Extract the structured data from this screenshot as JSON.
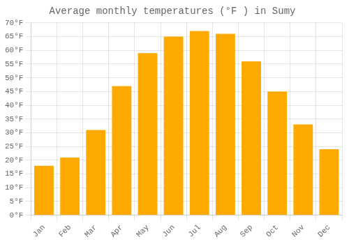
{
  "chart_data": {
    "type": "bar",
    "title": "Average monthly temperatures (°F ) in Sumy",
    "categories": [
      "Jan",
      "Feb",
      "Mar",
      "Apr",
      "May",
      "Jun",
      "Jul",
      "Aug",
      "Sep",
      "Oct",
      "Nov",
      "Dec"
    ],
    "values": [
      18,
      21,
      31,
      47,
      59,
      65,
      67,
      66,
      56,
      45,
      33,
      24
    ],
    "color": "#FFAA00",
    "ylim": [
      0,
      70
    ],
    "yticks": [
      {
        "value": 0,
        "label": "0°F"
      },
      {
        "value": 5,
        "label": "5°F"
      },
      {
        "value": 10,
        "label": "10°F"
      },
      {
        "value": 15,
        "label": "15°F"
      },
      {
        "value": 20,
        "label": "20°F"
      },
      {
        "value": 25,
        "label": "25°F"
      },
      {
        "value": 30,
        "label": "30°F"
      },
      {
        "value": 35,
        "label": "35°F"
      },
      {
        "value": 40,
        "label": "40°F"
      },
      {
        "value": 45,
        "label": "45°F"
      },
      {
        "value": 50,
        "label": "50°F"
      },
      {
        "value": 55,
        "label": "55°F"
      },
      {
        "value": 60,
        "label": "60°F"
      },
      {
        "value": 65,
        "label": "65°F"
      },
      {
        "value": 70,
        "label": "70°F"
      }
    ],
    "grid": true
  }
}
